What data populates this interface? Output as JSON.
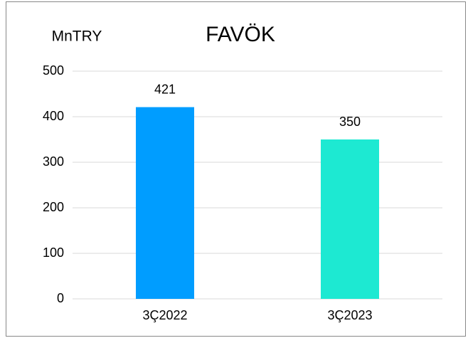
{
  "chart_data": {
    "type": "bar",
    "title": "FAVÖK",
    "y_label": "MnTRY",
    "categories": [
      "3Ç2022",
      "3Ç2023"
    ],
    "values": [
      421,
      350
    ],
    "colors": [
      "#009dff",
      "#1de9d2"
    ],
    "ylim": [
      0,
      500
    ],
    "yticks": [
      0,
      100,
      200,
      300,
      400,
      500
    ],
    "grid": true
  }
}
